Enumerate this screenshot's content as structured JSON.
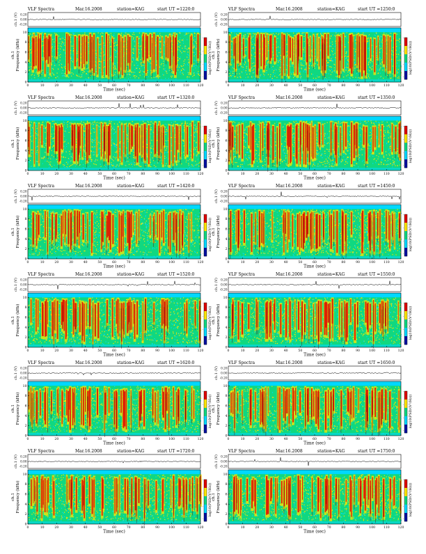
{
  "header": {
    "title": "VLF Spectra",
    "date": "Mar.16.2008",
    "station": "station=KAG",
    "start_prefix": "start  UT  ="
  },
  "axes": {
    "waveform_label": "ch.1 (V)",
    "waveform_ticks": [
      "0.20",
      "0.00",
      "-0.20"
    ],
    "channel_label": "ch.1",
    "freq_label": "Frequency  (kHz)",
    "freq_ticks": [
      "0",
      "2",
      "4",
      "6",
      "8",
      "10"
    ],
    "time_label": "Time  (sec)",
    "time_ticks": [
      "0",
      "10",
      "20",
      "30",
      "40",
      "50",
      "60",
      "70",
      "80",
      "90",
      "100",
      "110",
      "120"
    ],
    "colorbar_label": "log10(PSD/(V²/Hz))",
    "colorbar_ticks": [
      "-",
      "-",
      "-",
      "-"
    ]
  },
  "colors": {
    "low": "#0010a0",
    "cyan": "#00d8ff",
    "green": "#10d880",
    "yellow": "#ffe600",
    "red": "#e00000"
  },
  "panels": [
    {
      "start_ut": "1220:0"
    },
    {
      "start_ut": "1250:0"
    },
    {
      "start_ut": "1320:0"
    },
    {
      "start_ut": "1350:0"
    },
    {
      "start_ut": "1420:0"
    },
    {
      "start_ut": "1450:0"
    },
    {
      "start_ut": "1520:0"
    },
    {
      "start_ut": "1550:0"
    },
    {
      "start_ut": "1620:0"
    },
    {
      "start_ut": "1650:0"
    },
    {
      "start_ut": "1720:0"
    },
    {
      "start_ut": "1750:0"
    }
  ],
  "chart_data": [
    {
      "type": "heatmap",
      "start_ut": "1220:0",
      "x_range": [
        0,
        120
      ],
      "y_range": [
        0,
        10
      ],
      "xlabel": "Time (sec)",
      "ylabel": "Frequency (kHz)",
      "waveform_range": [
        -0.2,
        0.2
      ]
    },
    {
      "type": "heatmap",
      "start_ut": "1250:0",
      "x_range": [
        0,
        120
      ],
      "y_range": [
        0,
        10
      ],
      "xlabel": "Time (sec)",
      "ylabel": "Frequency (kHz)",
      "waveform_range": [
        -0.2,
        0.2
      ]
    },
    {
      "type": "heatmap",
      "start_ut": "1320:0",
      "x_range": [
        0,
        120
      ],
      "y_range": [
        0,
        10
      ],
      "xlabel": "Time (sec)",
      "ylabel": "Frequency (kHz)",
      "waveform_range": [
        -0.2,
        0.2
      ]
    },
    {
      "type": "heatmap",
      "start_ut": "1350:0",
      "x_range": [
        0,
        120
      ],
      "y_range": [
        0,
        10
      ],
      "xlabel": "Time (sec)",
      "ylabel": "Frequency (kHz)",
      "waveform_range": [
        -0.2,
        0.2
      ]
    },
    {
      "type": "heatmap",
      "start_ut": "1420:0",
      "x_range": [
        0,
        120
      ],
      "y_range": [
        0,
        10
      ],
      "xlabel": "Time (sec)",
      "ylabel": "Frequency (kHz)",
      "waveform_range": [
        -0.2,
        0.2
      ]
    },
    {
      "type": "heatmap",
      "start_ut": "1450:0",
      "x_range": [
        0,
        120
      ],
      "y_range": [
        0,
        10
      ],
      "xlabel": "Time (sec)",
      "ylabel": "Frequency (kHz)",
      "waveform_range": [
        -0.2,
        0.2
      ]
    },
    {
      "type": "heatmap",
      "start_ut": "1520:0",
      "x_range": [
        0,
        120
      ],
      "y_range": [
        0,
        10
      ],
      "xlabel": "Time (sec)",
      "ylabel": "Frequency (kHz)",
      "waveform_range": [
        -0.2,
        0.2
      ]
    },
    {
      "type": "heatmap",
      "start_ut": "1550:0",
      "x_range": [
        0,
        120
      ],
      "y_range": [
        0,
        10
      ],
      "xlabel": "Time (sec)",
      "ylabel": "Frequency (kHz)",
      "waveform_range": [
        -0.2,
        0.2
      ]
    },
    {
      "type": "heatmap",
      "start_ut": "1620:0",
      "x_range": [
        0,
        120
      ],
      "y_range": [
        0,
        10
      ],
      "xlabel": "Time (sec)",
      "ylabel": "Frequency (kHz)",
      "waveform_range": [
        -0.2,
        0.2
      ]
    },
    {
      "type": "heatmap",
      "start_ut": "1650:0",
      "x_range": [
        0,
        120
      ],
      "y_range": [
        0,
        10
      ],
      "xlabel": "Time (sec)",
      "ylabel": "Frequency (kHz)",
      "waveform_range": [
        -0.2,
        0.2
      ]
    },
    {
      "type": "heatmap",
      "start_ut": "1720:0",
      "x_range": [
        0,
        120
      ],
      "y_range": [
        0,
        10
      ],
      "xlabel": "Time (sec)",
      "ylabel": "Frequency (kHz)",
      "waveform_range": [
        -0.2,
        0.2
      ]
    },
    {
      "type": "heatmap",
      "start_ut": "1750:0",
      "x_range": [
        0,
        120
      ],
      "y_range": [
        0,
        10
      ],
      "xlabel": "Time (sec)",
      "ylabel": "Frequency (kHz)",
      "waveform_range": [
        -0.2,
        0.2
      ]
    }
  ]
}
